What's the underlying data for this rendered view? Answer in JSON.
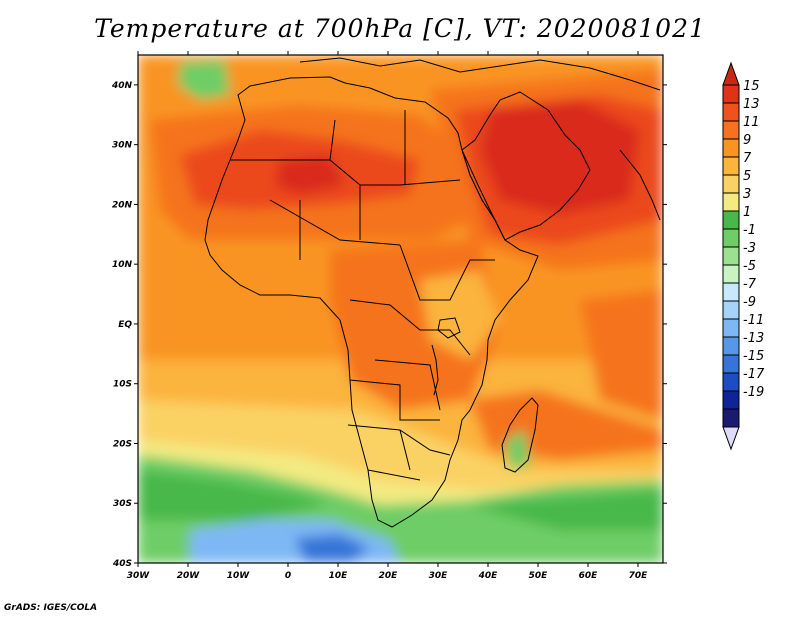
{
  "title": "Temperature at 700hPa [C], VT: 2020081021",
  "credit": "GrADS: IGES/COLA",
  "map": {
    "lon_range": [
      -30,
      75
    ],
    "lat_range": [
      -40,
      45
    ],
    "lon_ticks": [
      "30W",
      "20W",
      "10W",
      "0",
      "10E",
      "20E",
      "30E",
      "40E",
      "50E",
      "60E",
      "70E"
    ],
    "lat_ticks": [
      "40N",
      "30N",
      "20N",
      "10N",
      "EQ",
      "10S",
      "20S",
      "30S",
      "40S"
    ]
  },
  "colorbar": {
    "labels": [
      "15",
      "13",
      "11",
      "9",
      "7",
      "5",
      "3",
      "1",
      "-1",
      "-3",
      "-5",
      "-7",
      "-9",
      "-11",
      "-13",
      "-15",
      "-17",
      "-19"
    ],
    "colors": [
      "#e03218",
      "#f0521c",
      "#f5731e",
      "#f99423",
      "#fbb43c",
      "#fad264",
      "#f3ea82",
      "#47b849",
      "#6ecd66",
      "#9be18f",
      "#c9f3c2",
      "#c8e8fc",
      "#a4d4f9",
      "#7eb8f4",
      "#5598ea",
      "#3674d8",
      "#1e4cc2",
      "#0f2597",
      "#1a1a70"
    ],
    "top_arrow_color": "#c82814",
    "bottom_arrow_color": "#dcdcf8"
  },
  "palette": {
    "hot": "#d9291b",
    "red_orange": "#eb4a1f",
    "orange": "#f5731e",
    "light_orange": "#f99423",
    "amber": "#fbb43c",
    "yellow": "#fad264",
    "pale_yellow": "#f3ea82",
    "green": "#47b849",
    "light_green": "#6ecd66",
    "cold_blue": "#7eb8f4",
    "deep_blue": "#3674d8"
  }
}
